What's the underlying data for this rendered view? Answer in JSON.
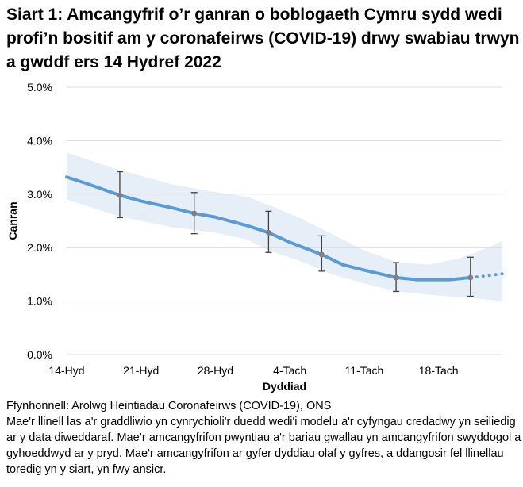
{
  "title": "Siart 1: Amcangyfrif o’r ganran o boblogaeth Cymru sydd wedi profi’n bositif am y coronafeirws (COVID-19) drwy swabiau trwyn a gwddf ers 14 Hydref 2022",
  "source": "Ffynhonnell: Arolwg Heintiadau Coronafeirws (COVID-19), ONS",
  "note": "Mae'r llinell las a'r graddliwio yn cynrychioli'r duedd wedi'i modelu a'r cyfyngau credadwy yn seiliedig ar y data diweddaraf. Mae’r amcangyfrifon pwyntiau a'r bariau gwallau yn amcangyfrifon swyddogol a gyhoeddwyd ar y pryd. Mae'r amcangyfrifon ar gyfer dyddiau olaf y gyfres, a ddangosir fel llinellau toredig yn y siart, yn fwy ansicr.",
  "chart_data": {
    "type": "line",
    "xlabel": "Dyddiad",
    "ylabel": "Canran",
    "xlim": [
      "2022-10-14",
      "2022-11-24"
    ],
    "ylim": [
      0,
      5
    ],
    "grid": true,
    "x_ticks": [
      {
        "date": "2022-10-14",
        "label": "14-Hyd"
      },
      {
        "date": "2022-10-21",
        "label": "21-Hyd"
      },
      {
        "date": "2022-10-28",
        "label": "28-Hyd"
      },
      {
        "date": "2022-11-04",
        "label": "4-Tach"
      },
      {
        "date": "2022-11-11",
        "label": "11-Tach"
      },
      {
        "date": "2022-11-18",
        "label": "18-Tach"
      }
    ],
    "y_ticks": [
      {
        "value": 0,
        "label": "0.0%"
      },
      {
        "value": 1,
        "label": "1.0%"
      },
      {
        "value": 2,
        "label": "2.0%"
      },
      {
        "value": 3,
        "label": "3.0%"
      },
      {
        "value": 4,
        "label": "4.0%"
      },
      {
        "value": 5,
        "label": "5.0%"
      }
    ],
    "colors": {
      "trend": "#5b9bd5",
      "interval": "#e6eef8",
      "points": "#7f7f7f",
      "grid": "#d9d9d9"
    },
    "modelled_trend": [
      {
        "x": "2022-10-14",
        "y": 3.32
      },
      {
        "x": "2022-10-16",
        "y": 3.19
      },
      {
        "x": "2022-10-19",
        "y": 2.98
      },
      {
        "x": "2022-10-21",
        "y": 2.87
      },
      {
        "x": "2022-10-24",
        "y": 2.74
      },
      {
        "x": "2022-10-26",
        "y": 2.64
      },
      {
        "x": "2022-10-28",
        "y": 2.57
      },
      {
        "x": "2022-10-31",
        "y": 2.41
      },
      {
        "x": "2022-11-02",
        "y": 2.28
      },
      {
        "x": "2022-11-04",
        "y": 2.1
      },
      {
        "x": "2022-11-07",
        "y": 1.87
      },
      {
        "x": "2022-11-09",
        "y": 1.68
      },
      {
        "x": "2022-11-11",
        "y": 1.58
      },
      {
        "x": "2022-11-14",
        "y": 1.44
      },
      {
        "x": "2022-11-16",
        "y": 1.4
      },
      {
        "x": "2022-11-19",
        "y": 1.4
      },
      {
        "x": "2022-11-21",
        "y": 1.44
      }
    ],
    "uncertain_trend": [
      {
        "x": "2022-11-21",
        "y": 1.44
      },
      {
        "x": "2022-11-22",
        "y": 1.46
      },
      {
        "x": "2022-11-24",
        "y": 1.51
      }
    ],
    "credible_interval": [
      {
        "x": "2022-10-14",
        "lo": 2.9,
        "hi": 3.78
      },
      {
        "x": "2022-10-19",
        "lo": 2.58,
        "hi": 3.45
      },
      {
        "x": "2022-10-24",
        "lo": 2.38,
        "hi": 3.18
      },
      {
        "x": "2022-10-28",
        "lo": 2.28,
        "hi": 3.04
      },
      {
        "x": "2022-10-31",
        "lo": 2.15,
        "hi": 2.95
      },
      {
        "x": "2022-11-02",
        "lo": 1.95,
        "hi": 2.8
      },
      {
        "x": "2022-11-05",
        "lo": 1.75,
        "hi": 2.55
      },
      {
        "x": "2022-11-08",
        "lo": 1.5,
        "hi": 2.25
      },
      {
        "x": "2022-11-11",
        "lo": 1.33,
        "hi": 1.95
      },
      {
        "x": "2022-11-14",
        "lo": 1.18,
        "hi": 1.73
      },
      {
        "x": "2022-11-17",
        "lo": 1.12,
        "hi": 1.68
      },
      {
        "x": "2022-11-20",
        "lo": 1.07,
        "hi": 1.8
      },
      {
        "x": "2022-11-22",
        "lo": 1.04,
        "hi": 1.95
      },
      {
        "x": "2022-11-24",
        "lo": 1.0,
        "hi": 2.12
      }
    ],
    "official_estimates": [
      {
        "x": "2022-10-19",
        "y": 2.98,
        "lo": 2.56,
        "hi": 3.42
      },
      {
        "x": "2022-10-26",
        "y": 2.64,
        "lo": 2.26,
        "hi": 3.03
      },
      {
        "x": "2022-11-02",
        "y": 2.28,
        "lo": 1.91,
        "hi": 2.68
      },
      {
        "x": "2022-11-07",
        "y": 1.87,
        "lo": 1.56,
        "hi": 2.22
      },
      {
        "x": "2022-11-14",
        "y": 1.44,
        "lo": 1.18,
        "hi": 1.72
      },
      {
        "x": "2022-11-21",
        "y": 1.44,
        "lo": 1.09,
        "hi": 1.82
      }
    ]
  }
}
